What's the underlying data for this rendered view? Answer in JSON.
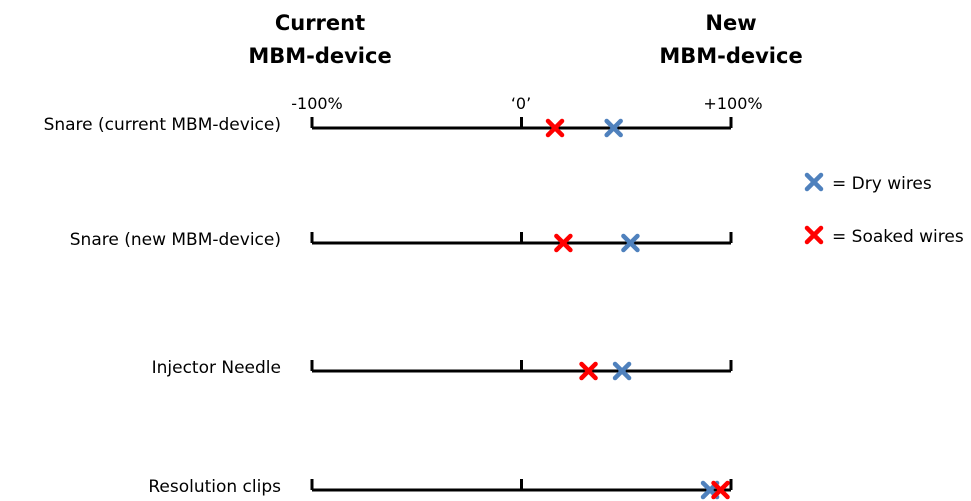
{
  "chart_data": {
    "type": "scatter",
    "orientation": "horizontal",
    "header_left": [
      "Current",
      "MBM-device"
    ],
    "header_right": [
      "New",
      "MBM-device"
    ],
    "tick_labels": [
      "-100%",
      "‘0’",
      "+100%"
    ],
    "tick_values": [
      -100,
      0,
      100
    ],
    "xlim": [
      -100,
      100
    ],
    "grid": false,
    "legend_placement": "right",
    "categories": [
      "Snare (current MBM-device)",
      "Snare (new MBM-device)",
      "Injector Needle",
      "Resolution clips"
    ],
    "series": [
      {
        "name": "= Dry wires",
        "color": "#4f81bd",
        "marker": "x",
        "values": [
          44,
          52,
          48,
          90
        ]
      },
      {
        "name": "= Soaked wires",
        "color": "#ff0000",
        "marker": "x",
        "values": [
          16,
          20,
          32,
          95
        ]
      }
    ]
  }
}
